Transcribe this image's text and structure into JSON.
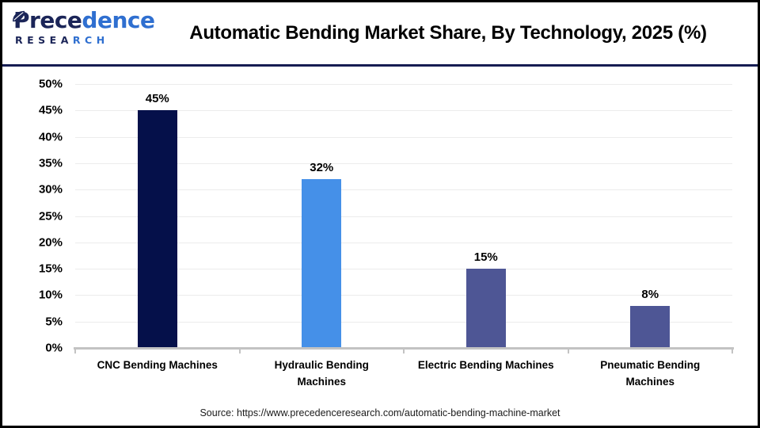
{
  "header": {
    "logo": {
      "word_dark": "Prece",
      "word_light": "dence",
      "sub_dark": "RESEA",
      "sub_light": "RCH"
    },
    "title": "Automatic Bending Market Share, By Technology, 2025 (%)"
  },
  "chart_data": {
    "type": "bar",
    "title": "Automatic Bending Market Share, By Technology, 2025 (%)",
    "categories": [
      "CNC Bending Machines",
      "Hydraulic Bending Machines",
      "Electric Bending Machines",
      "Pneumatic Bending Machines"
    ],
    "category_lines": [
      [
        "CNC Bending Machines"
      ],
      [
        "Hydraulic Bending",
        "Machines"
      ],
      [
        "Electric Bending Machines"
      ],
      [
        "Pneumatic Bending",
        "Machines"
      ]
    ],
    "values": [
      45,
      32,
      15,
      8
    ],
    "value_labels": [
      "45%",
      "32%",
      "15%",
      "8%"
    ],
    "bar_colors": [
      "#05104a",
      "#4590e8",
      "#4e5695",
      "#4e5695"
    ],
    "xlabel": "",
    "ylabel": "",
    "ylim": [
      0,
      50
    ],
    "ytick_step": 5,
    "ytick_labels": [
      "0%",
      "5%",
      "10%",
      "15%",
      "20%",
      "25%",
      "30%",
      "35%",
      "40%",
      "45%",
      "50%"
    ],
    "grid": true,
    "legend_position": "none"
  },
  "footer": {
    "source": "Source: https://www.precedenceresearch.com/automatic-bending-machine-market"
  },
  "colors": {
    "frame_border": "#000000",
    "header_divider": "#161d52",
    "gridline": "#ececec",
    "axis_line": "#c3c3c3",
    "logo_dark": "#1b2558",
    "logo_light": "#2f6fd0",
    "bar_cnc": "#05104a",
    "bar_hydraulic": "#4590e8",
    "bar_electric": "#4e5695",
    "bar_pneumatic": "#4e5695"
  }
}
